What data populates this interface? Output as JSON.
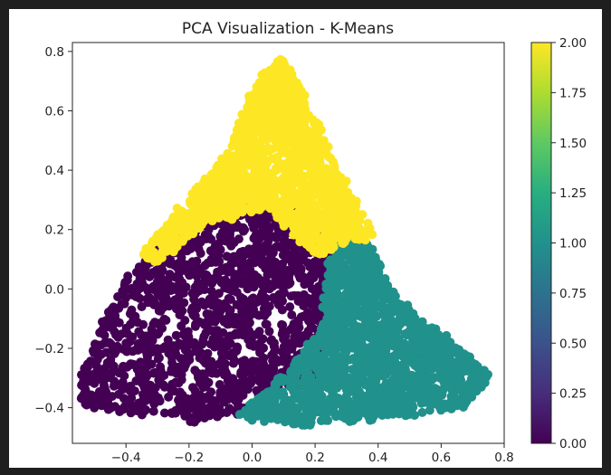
{
  "chart_data": {
    "type": "scatter",
    "title": "PCA Visualization - K-Means",
    "xlabel": "",
    "ylabel": "",
    "xlim": [
      -0.57,
      0.8
    ],
    "ylim": [
      -0.52,
      0.83
    ],
    "x_ticks": [
      -0.4,
      -0.2,
      0.0,
      0.2,
      0.4,
      0.6,
      0.8
    ],
    "x_tick_labels": [
      "−0.4",
      "−0.2",
      "0.0",
      "0.2",
      "0.4",
      "0.6",
      "0.8"
    ],
    "y_ticks": [
      -0.4,
      -0.2,
      0.0,
      0.2,
      0.4,
      0.6,
      0.8
    ],
    "y_tick_labels": [
      "−0.4",
      "−0.2",
      "0.0",
      "0.2",
      "0.4",
      "0.6",
      "0.8"
    ],
    "grid": false,
    "colormap": "viridis",
    "colorbar": {
      "range": [
        0.0,
        2.0
      ],
      "ticks": [
        0.0,
        0.25,
        0.5,
        0.75,
        1.0,
        1.25,
        1.5,
        1.75,
        2.0
      ],
      "tick_labels": [
        "0.00",
        "0.25",
        "0.50",
        "0.75",
        "1.00",
        "1.25",
        "1.50",
        "1.75",
        "2.00"
      ]
    },
    "series": [
      {
        "cluster": 0,
        "color": "#440154",
        "extent_polygon": [
          [
            -0.53,
            -0.39
          ],
          [
            -0.18,
            -0.44
          ],
          [
            0.0,
            -0.41
          ],
          [
            0.2,
            -0.3
          ],
          [
            0.25,
            0.02
          ],
          [
            0.28,
            0.17
          ],
          [
            0.1,
            0.27
          ],
          [
            -0.07,
            0.29
          ],
          [
            -0.22,
            0.18
          ],
          [
            -0.33,
            0.13
          ],
          [
            -0.46,
            -0.09
          ],
          [
            -0.54,
            -0.3
          ]
        ]
      },
      {
        "cluster": 1,
        "color": "#21918c",
        "extent_polygon": [
          [
            -0.05,
            -0.43
          ],
          [
            0.18,
            -0.45
          ],
          [
            0.5,
            -0.42
          ],
          [
            0.67,
            -0.39
          ],
          [
            0.75,
            -0.29
          ],
          [
            0.6,
            -0.16
          ],
          [
            0.45,
            -0.03
          ],
          [
            0.38,
            0.12
          ],
          [
            0.32,
            0.22
          ],
          [
            0.25,
            0.08
          ],
          [
            0.22,
            -0.15
          ],
          [
            0.1,
            -0.3
          ]
        ]
      },
      {
        "cluster": 2,
        "color": "#fde725",
        "extent_polygon": [
          [
            -0.34,
            0.12
          ],
          [
            -0.25,
            0.24
          ],
          [
            -0.08,
            0.45
          ],
          [
            0.02,
            0.7
          ],
          [
            0.1,
            0.77
          ],
          [
            0.18,
            0.6
          ],
          [
            0.28,
            0.38
          ],
          [
            0.38,
            0.18
          ],
          [
            0.2,
            0.12
          ],
          [
            0.05,
            0.28
          ],
          [
            -0.15,
            0.22
          ],
          [
            -0.3,
            0.1
          ]
        ]
      }
    ]
  }
}
